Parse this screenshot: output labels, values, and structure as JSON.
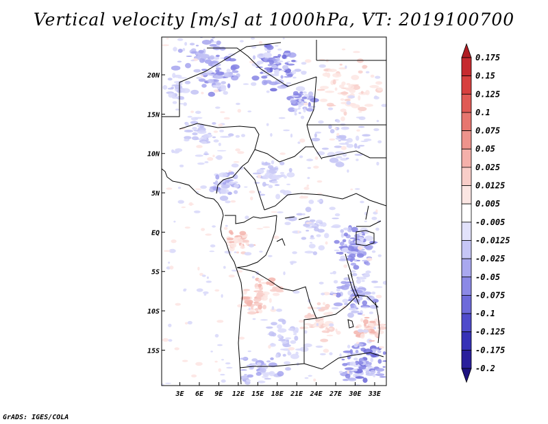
{
  "title": "Vertical velocity [m/s] at 1000hPa, VT: 2019100700",
  "footer": "GrADS: IGES/COLA",
  "map": {
    "lat_ticks": [
      "20N",
      "15N",
      "10N",
      "5N",
      "EQ",
      "5S",
      "10S",
      "15S"
    ],
    "lat_values": [
      20,
      15,
      10,
      5,
      0,
      -5,
      -10,
      -15
    ],
    "lon_ticks": [
      "3E",
      "6E",
      "9E",
      "12E",
      "15E",
      "18E",
      "21E",
      "24E",
      "27E",
      "30E",
      "33E"
    ],
    "lon_values": [
      3,
      6,
      9,
      12,
      15,
      18,
      21,
      24,
      27,
      30,
      33
    ],
    "lon_range": [
      0.2,
      34.8
    ],
    "lat_range": [
      -19.5,
      24.8
    ]
  },
  "colorbar": {
    "labels": [
      "0.175",
      "0.15",
      "0.125",
      "0.1",
      "0.075",
      "0.05",
      "0.025",
      "0.0125",
      "0.005",
      "-0.005",
      "-0.0125",
      "-0.025",
      "-0.05",
      "-0.075",
      "-0.1",
      "-0.125",
      "-0.175",
      "-0.2"
    ],
    "colors": [
      "#b01c22",
      "#c62a2f",
      "#d7403f",
      "#e05a55",
      "#e7766f",
      "#ee938c",
      "#f4b0aa",
      "#f8cdc8",
      "#fbe6e3",
      "#ffffff",
      "#e2e2fb",
      "#c6c6f6",
      "#a9a8ef",
      "#8b89e6",
      "#6d6ada",
      "#4f4bcb",
      "#3631b7",
      "#2a1f9c",
      "#1e1380"
    ]
  }
}
